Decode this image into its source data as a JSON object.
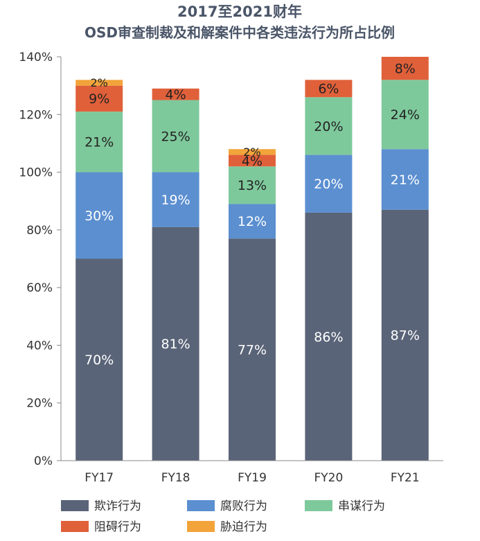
{
  "chart_data": {
    "type": "bar",
    "stacked": true,
    "title": "2017至2021财年",
    "subtitle": "OSD审查制裁及和解案件中各类违法行为所占比例",
    "categories": [
      "FY17",
      "FY18",
      "FY19",
      "FY20",
      "FY21"
    ],
    "y_ticks": [
      "0%",
      "20%",
      "40%",
      "60%",
      "80%",
      "100%",
      "120%",
      "140%"
    ],
    "ylim": [
      0,
      140
    ],
    "grid": false,
    "legend_position": "bottom",
    "series": [
      {
        "name": "欺诈行为",
        "color": "#5a6478",
        "label_color": "#ffffff",
        "values": [
          70,
          81,
          77,
          86,
          87
        ],
        "labels": [
          "70%",
          "81%",
          "77%",
          "86%",
          "87%"
        ]
      },
      {
        "name": "腐败行为",
        "color": "#5b8fd0",
        "label_color": "#ffffff",
        "values": [
          30,
          19,
          12,
          20,
          21
        ],
        "labels": [
          "30%",
          "19%",
          "12%",
          "20%",
          "21%"
        ]
      },
      {
        "name": "串谋行为",
        "color": "#7ec99c",
        "label_color": "#222222",
        "values": [
          21,
          25,
          13,
          20,
          24
        ],
        "labels": [
          "21%",
          "25%",
          "13%",
          "20%",
          "24%"
        ]
      },
      {
        "name": "阻碍行为",
        "color": "#e0603a",
        "label_color": "#222222",
        "values": [
          9,
          4,
          4,
          6,
          8
        ],
        "labels": [
          "9%",
          "4%",
          "4%",
          "6%",
          "8%"
        ]
      },
      {
        "name": "胁迫行为",
        "color": "#f2a43a",
        "label_color": "#222222",
        "values": [
          2,
          0,
          2,
          0,
          0
        ],
        "labels": [
          "2%",
          "",
          "2%",
          "",
          ""
        ]
      }
    ]
  }
}
